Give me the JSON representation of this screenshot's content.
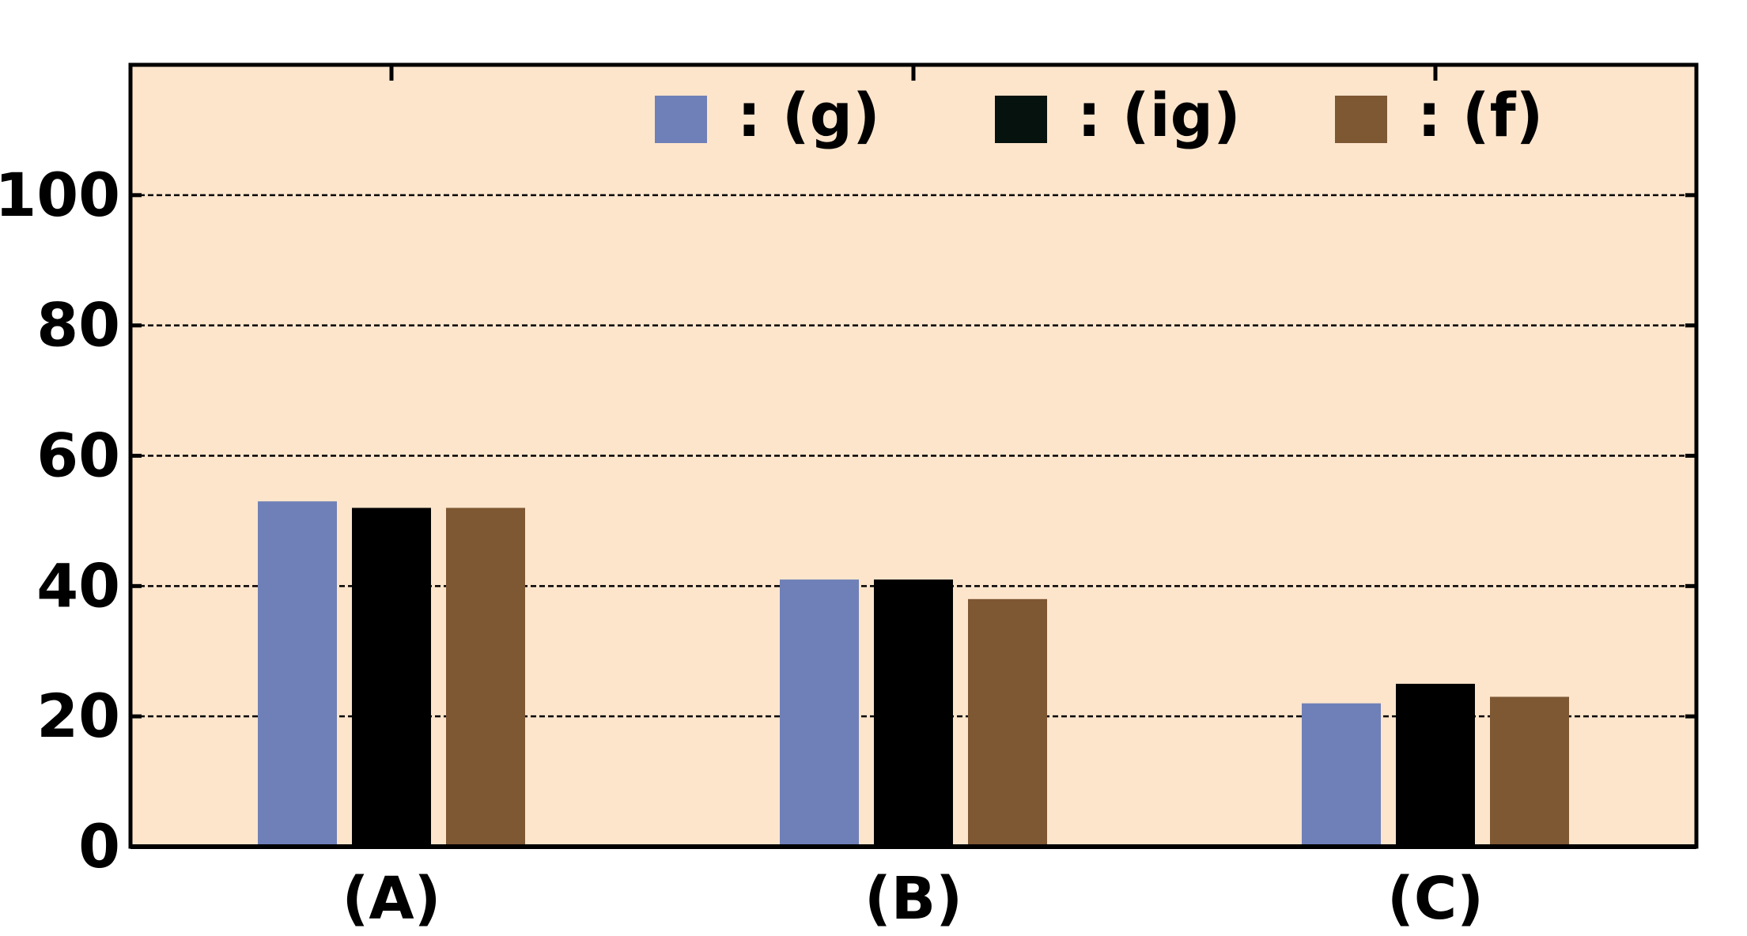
{
  "chart_data": {
    "type": "bar",
    "title": "",
    "xlabel": "",
    "ylabel": "",
    "categories": [
      "(A)",
      "(B)",
      "(C)"
    ],
    "series": [
      {
        "name": ": (g)",
        "values": [
          53,
          41,
          22
        ],
        "color": "#6f80b8"
      },
      {
        "name": ": (ig)",
        "values": [
          52,
          41,
          25
        ],
        "color": "#000000",
        "legend_color": "#06120e"
      },
      {
        "name": ": (f)",
        "values": [
          52,
          38,
          23
        ],
        "color": "#7e5733"
      }
    ],
    "ylim": [
      0,
      120
    ],
    "yticks": [
      0,
      20,
      40,
      60,
      80,
      100
    ],
    "grid": true,
    "legend_position": "top-right",
    "plot_background": "#fde5cc"
  }
}
